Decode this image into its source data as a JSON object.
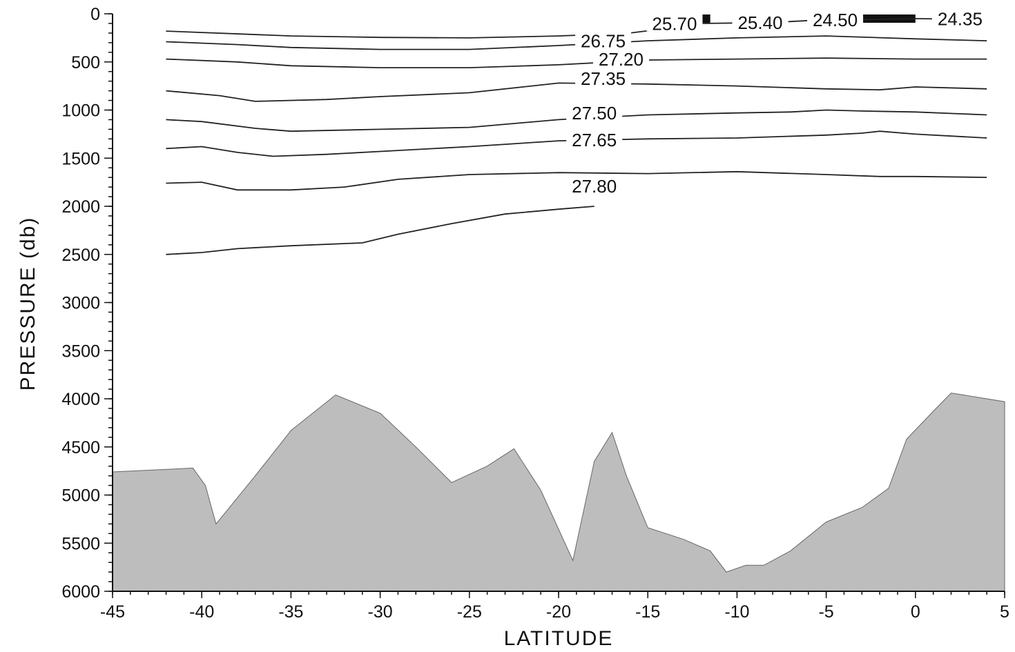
{
  "chart_data": {
    "type": "line",
    "title": "",
    "xlabel": "LATITUDE",
    "ylabel": "PRESSURE (db)",
    "xlim": [
      -45,
      5
    ],
    "ylim": [
      6000,
      0
    ],
    "y_inverted": true,
    "x_ticks": [
      "-45",
      "-40",
      "-35",
      "-30",
      "-25",
      "-20",
      "-15",
      "-10",
      "-5",
      "0",
      "5"
    ],
    "y_ticks": [
      "0",
      "500",
      "1000",
      "1500",
      "2000",
      "2500",
      "3000",
      "3500",
      "4000",
      "4500",
      "5000",
      "5500",
      "6000"
    ],
    "grid": false,
    "contour_field": "density isopycnals",
    "series": [
      {
        "name": "25.70",
        "label_at": [
          -13.5,
          110
        ],
        "points": [
          [
            -42,
            180
          ],
          [
            -35,
            230
          ],
          [
            -30,
            245
          ],
          [
            -25,
            250
          ],
          [
            -20,
            230
          ],
          [
            -16,
            200
          ],
          [
            -13,
            130
          ],
          [
            -12,
            100
          ]
        ]
      },
      {
        "name": "25.40",
        "label_at": [
          -8.7,
          100
        ],
        "points": [
          [
            -12,
            100
          ],
          [
            -10,
            95
          ],
          [
            -8,
            90
          ]
        ]
      },
      {
        "name": "24.50",
        "label_at": [
          -4.5,
          70
        ],
        "points": [
          [
            -8,
            90
          ],
          [
            -6,
            70
          ],
          [
            -3,
            60
          ],
          [
            0,
            50
          ]
        ]
      },
      {
        "name": "24.35",
        "label_at": [
          2.5,
          60
        ],
        "points": [
          [
            0,
            50
          ],
          [
            2,
            55
          ],
          [
            4,
            60
          ]
        ]
      },
      {
        "name": "26.75",
        "label_at": [
          -17.5,
          290
        ],
        "points": [
          [
            -42,
            290
          ],
          [
            -38,
            320
          ],
          [
            -35,
            350
          ],
          [
            -30,
            370
          ],
          [
            -25,
            370
          ],
          [
            -20,
            330
          ],
          [
            -15,
            280
          ],
          [
            -10,
            250
          ],
          [
            -5,
            230
          ],
          [
            0,
            260
          ],
          [
            4,
            280
          ]
        ]
      },
      {
        "name": "27.20",
        "label_at": [
          -16.5,
          480
        ],
        "points": [
          [
            -42,
            470
          ],
          [
            -38,
            500
          ],
          [
            -35,
            540
          ],
          [
            -30,
            560
          ],
          [
            -25,
            560
          ],
          [
            -20,
            530
          ],
          [
            -15,
            480
          ],
          [
            -10,
            470
          ],
          [
            -5,
            460
          ],
          [
            0,
            470
          ],
          [
            4,
            470
          ]
        ]
      },
      {
        "name": "27.35",
        "label_at": [
          -17.5,
          680
        ],
        "points": [
          [
            -42,
            800
          ],
          [
            -39,
            850
          ],
          [
            -37,
            910
          ],
          [
            -33,
            890
          ],
          [
            -30,
            860
          ],
          [
            -25,
            820
          ],
          [
            -20,
            720
          ],
          [
            -15,
            730
          ],
          [
            -10,
            750
          ],
          [
            -5,
            780
          ],
          [
            -2,
            790
          ],
          [
            0,
            760
          ],
          [
            4,
            780
          ]
        ]
      },
      {
        "name": "27.50",
        "label_at": [
          -18,
          1040
        ],
        "points": [
          [
            -42,
            1100
          ],
          [
            -40,
            1120
          ],
          [
            -37,
            1190
          ],
          [
            -35,
            1220
          ],
          [
            -30,
            1200
          ],
          [
            -25,
            1180
          ],
          [
            -20,
            1100
          ],
          [
            -15,
            1050
          ],
          [
            -10,
            1030
          ],
          [
            -7,
            1020
          ],
          [
            -5,
            1000
          ],
          [
            -3,
            1010
          ],
          [
            0,
            1020
          ],
          [
            4,
            1050
          ]
        ]
      },
      {
        "name": "27.65",
        "label_at": [
          -18,
          1320
        ],
        "points": [
          [
            -42,
            1400
          ],
          [
            -40,
            1380
          ],
          [
            -38,
            1440
          ],
          [
            -36,
            1480
          ],
          [
            -33,
            1460
          ],
          [
            -30,
            1430
          ],
          [
            -25,
            1380
          ],
          [
            -20,
            1320
          ],
          [
            -15,
            1300
          ],
          [
            -10,
            1290
          ],
          [
            -5,
            1260
          ],
          [
            -3,
            1240
          ],
          [
            -2,
            1220
          ],
          [
            0,
            1250
          ],
          [
            4,
            1290
          ]
        ]
      },
      {
        "name": "27.80",
        "label_at": [
          -18,
          1800
        ],
        "points": [
          [
            -42,
            1760
          ],
          [
            -40,
            1750
          ],
          [
            -38,
            1830
          ],
          [
            -35,
            1830
          ],
          [
            -32,
            1800
          ],
          [
            -29,
            1720
          ],
          [
            -25,
            1670
          ],
          [
            -20,
            1650
          ],
          [
            -15,
            1660
          ],
          [
            -10,
            1640
          ],
          [
            -5,
            1670
          ],
          [
            -2,
            1690
          ],
          [
            0,
            1690
          ],
          [
            4,
            1700
          ]
        ]
      },
      {
        "name": "",
        "points": [
          [
            -42,
            2500
          ],
          [
            -40,
            2480
          ],
          [
            -38,
            2440
          ],
          [
            -35,
            2410
          ],
          [
            -31,
            2380
          ],
          [
            -29,
            2290
          ],
          [
            -26,
            2180
          ],
          [
            -23,
            2080
          ],
          [
            -20,
            2030
          ],
          [
            -18,
            2000
          ]
        ]
      }
    ],
    "bottom_topography": {
      "fill": "#bdbdbd",
      "points": [
        [
          -45,
          4760
        ],
        [
          -40.5,
          4720
        ],
        [
          -39.8,
          4900
        ],
        [
          -39.2,
          5300
        ],
        [
          -37,
          4800
        ],
        [
          -35,
          4330
        ],
        [
          -32.5,
          3960
        ],
        [
          -30,
          4150
        ],
        [
          -28,
          4500
        ],
        [
          -26,
          4870
        ],
        [
          -24,
          4700
        ],
        [
          -22.5,
          4520
        ],
        [
          -21,
          4950
        ],
        [
          -19.2,
          5680
        ],
        [
          -18,
          4650
        ],
        [
          -17,
          4350
        ],
        [
          -16.2,
          4800
        ],
        [
          -15,
          5340
        ],
        [
          -13,
          5460
        ],
        [
          -11.5,
          5580
        ],
        [
          -10.6,
          5800
        ],
        [
          -9.5,
          5730
        ],
        [
          -8.5,
          5730
        ],
        [
          -7,
          5580
        ],
        [
          -5,
          5280
        ],
        [
          -3,
          5130
        ],
        [
          -1.5,
          4930
        ],
        [
          -0.5,
          4420
        ],
        [
          1,
          4130
        ],
        [
          2,
          3940
        ],
        [
          5,
          4030
        ]
      ]
    },
    "surface_bars": [
      [
        -13,
        -11.5
      ],
      [
        -8,
        -7.7
      ],
      [
        -3,
        0
      ]
    ],
    "colors": {
      "axis": "#111111",
      "contour": "#222222",
      "topography": "#bdbdbd",
      "background": "#ffffff"
    }
  }
}
